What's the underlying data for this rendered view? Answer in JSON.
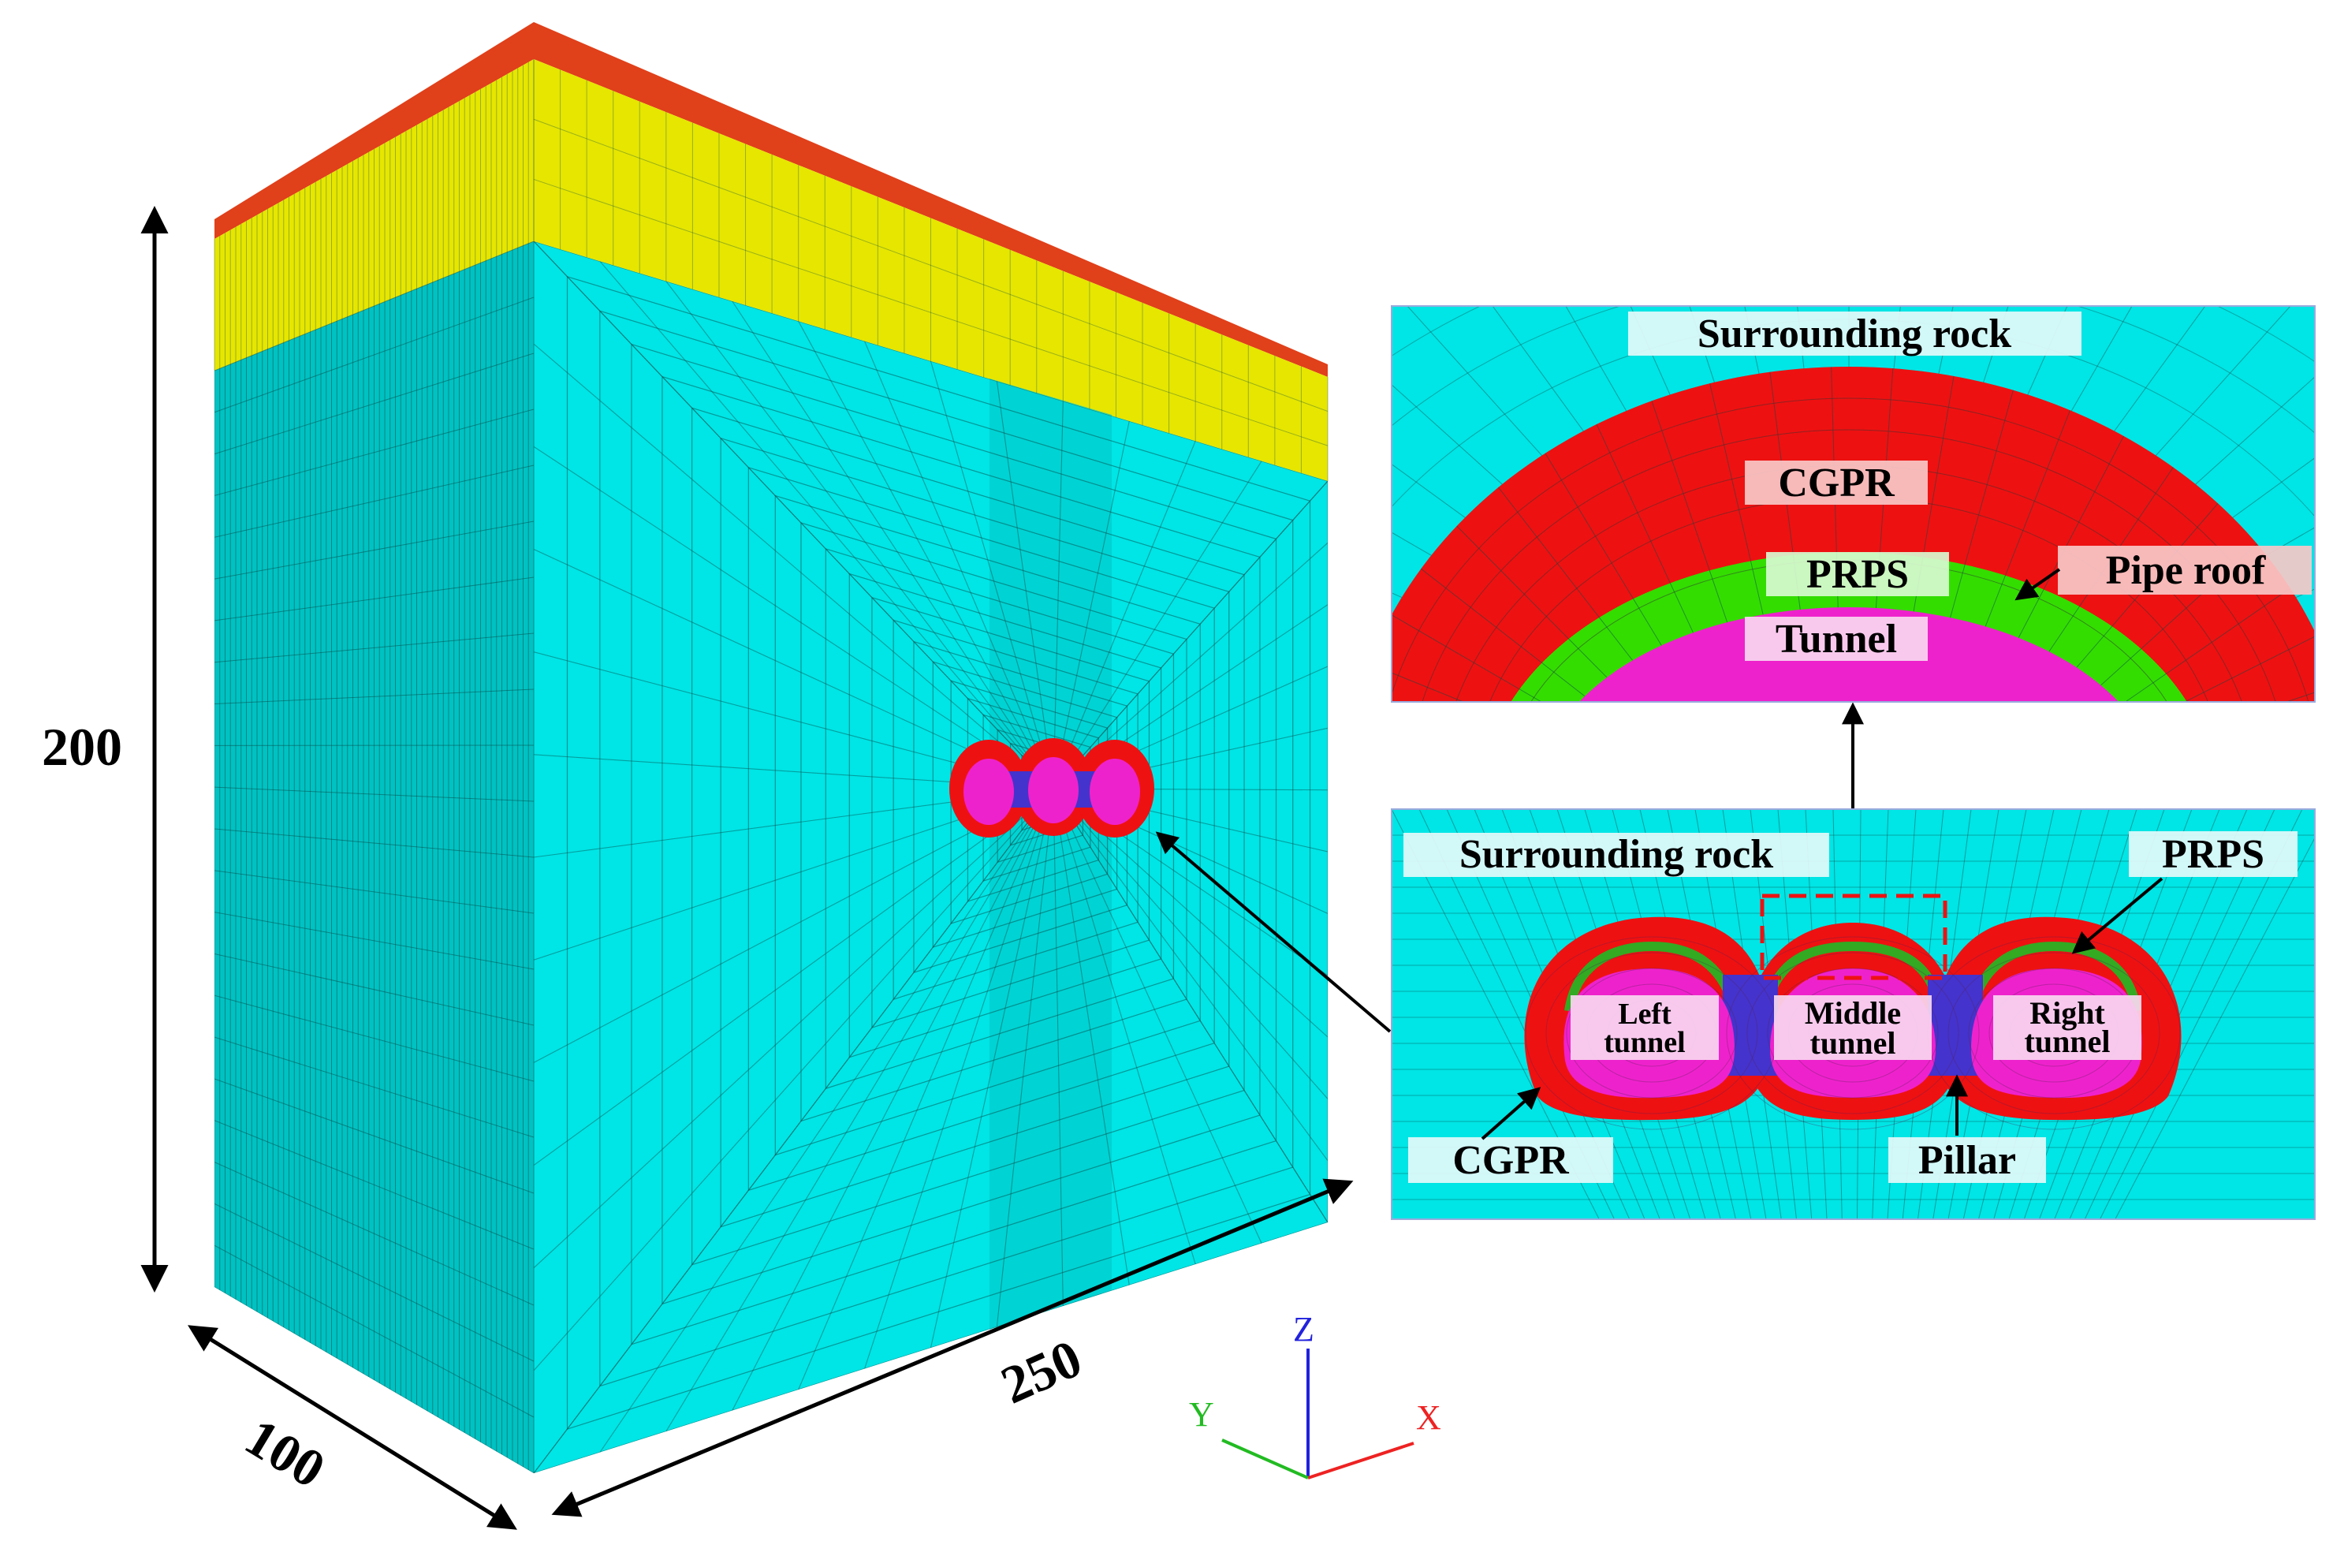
{
  "dimensions": {
    "height_label": "200",
    "depth_label": "100",
    "width_label": "250"
  },
  "axes": {
    "x": "X",
    "y": "Y",
    "z": "Z"
  },
  "detail_top": {
    "surrounding_rock": "Surrounding rock",
    "cgpr": "CGPR",
    "prps": "PRPS",
    "pipe_roof": "Pipe roof",
    "tunnel": "Tunnel"
  },
  "detail_bottom": {
    "surrounding_rock": "Surrounding rock",
    "prps": "PRPS",
    "left_tunnel": [
      "Left",
      "tunnel"
    ],
    "middle_tunnel": [
      "Middle",
      "tunnel"
    ],
    "right_tunnel": [
      "Right",
      "tunnel"
    ],
    "cgpr": "CGPR",
    "pillar": "Pillar"
  },
  "colors": {
    "rock": "#00e5e5",
    "rock_side": "#00c2c2",
    "soil_yellow": "#e6e600",
    "soil_red": "#e0401a",
    "cgpr": "#ee1111",
    "prps": "#22dd00",
    "tunnel": "#ee22cc",
    "pillar": "#4433cc",
    "mesh": "#0a4a4a",
    "label_bg": "#e4fafa",
    "label_bg_red": "#f8c8c8",
    "label_bg_pink": "#f8d8f0",
    "axis_x": "#ee2222",
    "axis_y": "#22bb22",
    "axis_z": "#2222dd"
  }
}
